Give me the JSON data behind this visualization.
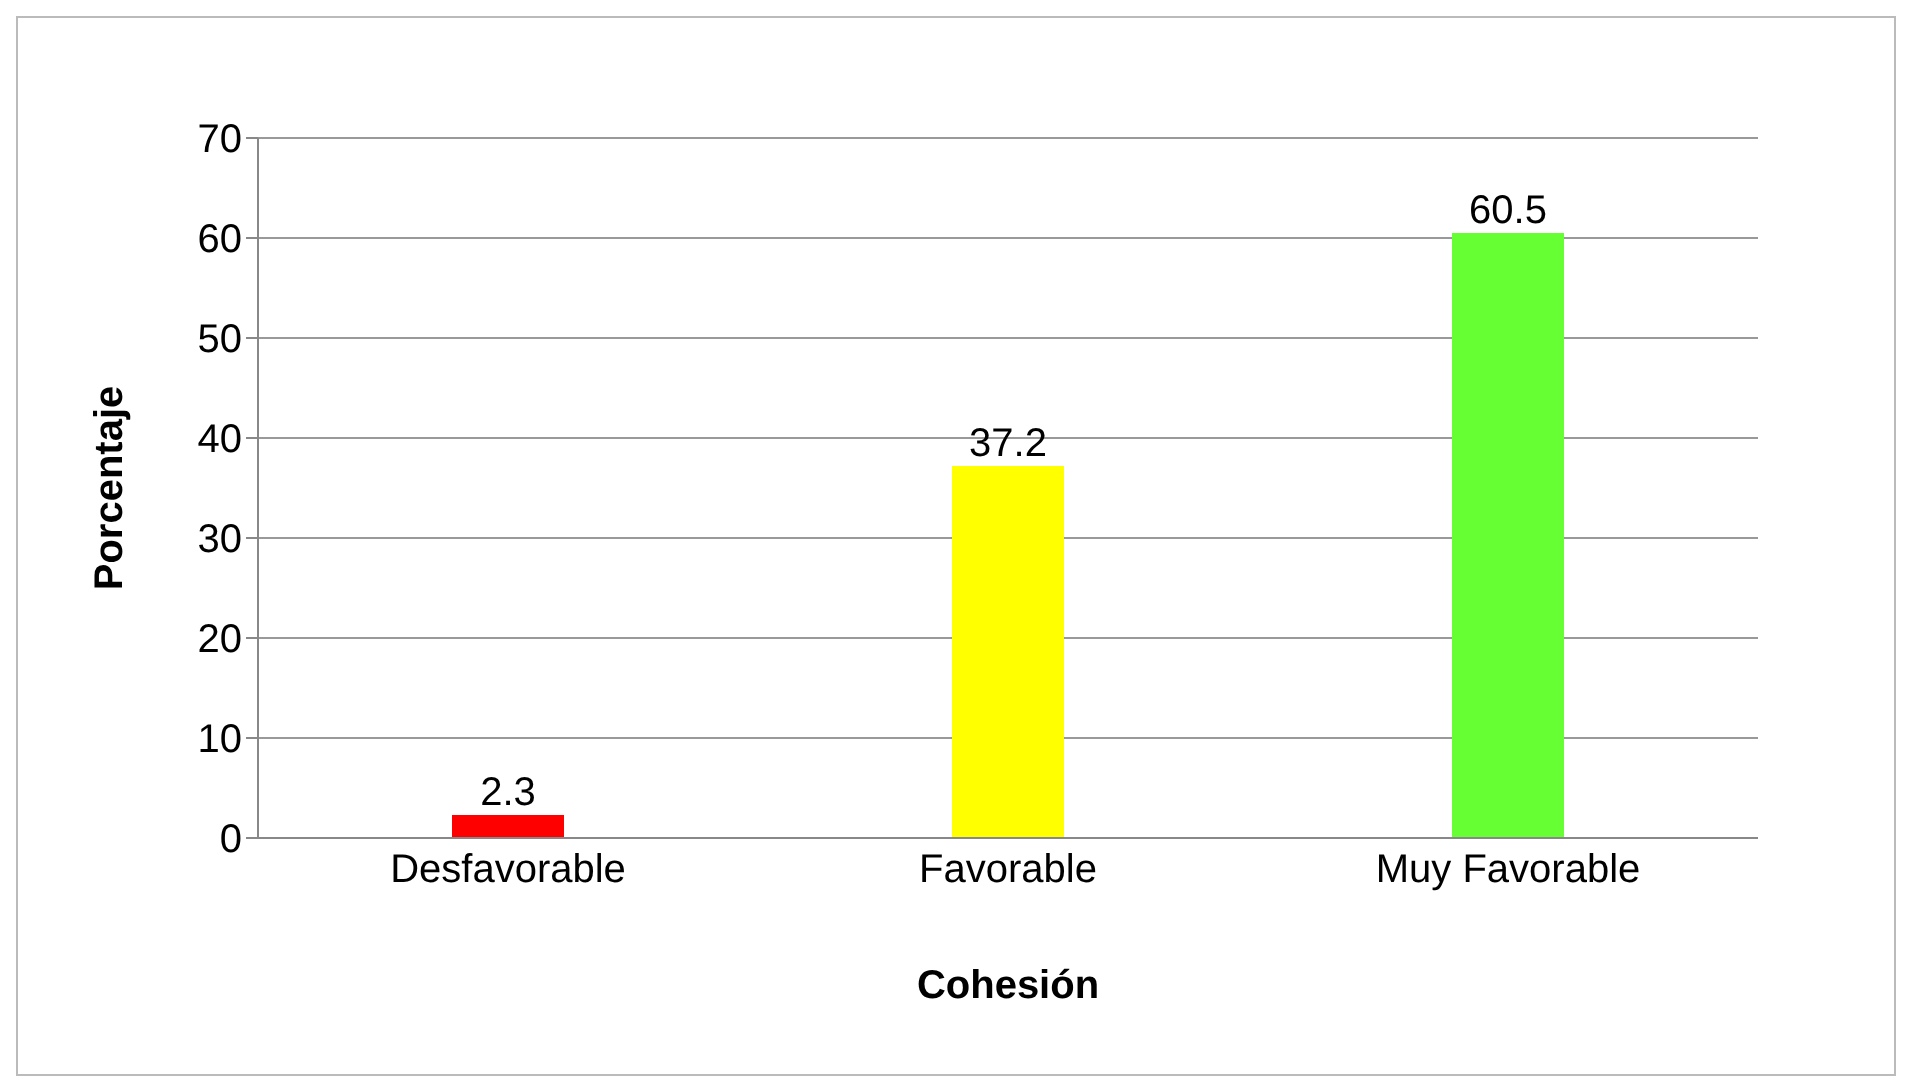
{
  "chart_data": {
    "type": "bar",
    "xlabel": "Cohesión",
    "ylabel": "Porcentaje",
    "categories": [
      "Desfavorable",
      "Favorable",
      "Muy Favorable"
    ],
    "values": [
      2.3,
      37.2,
      60.5
    ],
    "colors": [
      "#ff0000",
      "#ffff00",
      "#66ff33"
    ],
    "ylim": [
      0,
      70
    ],
    "yticks": [
      0,
      10,
      20,
      30,
      40,
      50,
      60,
      70
    ],
    "grid": "y",
    "data_labels": true
  }
}
